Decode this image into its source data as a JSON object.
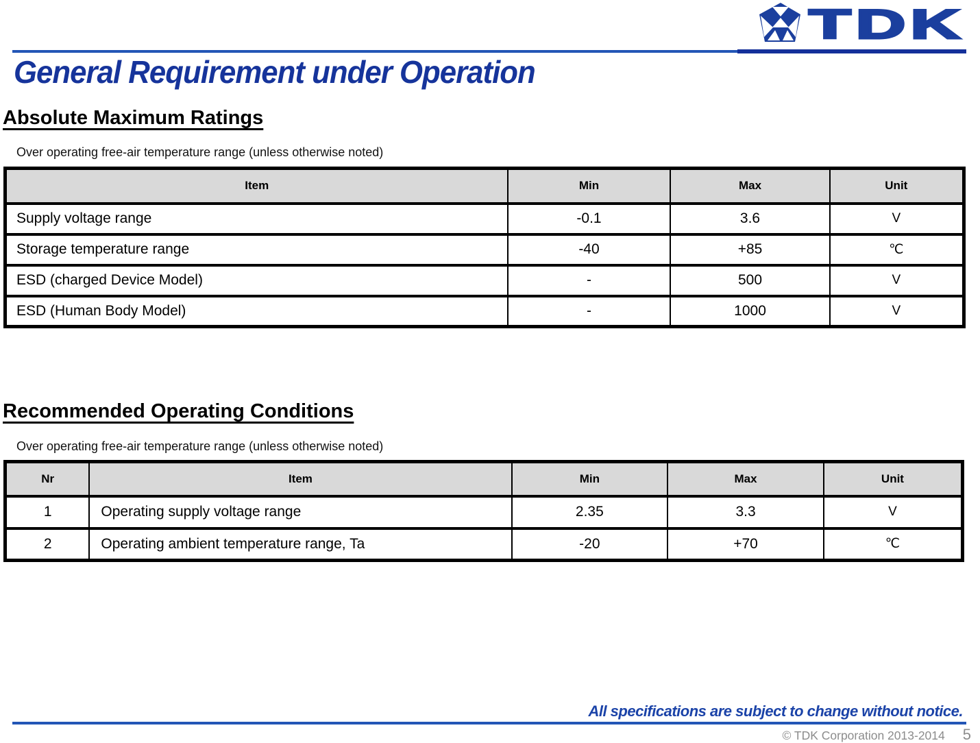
{
  "brand": {
    "logo_text": "TDK",
    "logo_color": "#1b3f9e"
  },
  "page": {
    "title": "General Requirement under Operation",
    "footer_notice": "All specifications are subject to change without notice.",
    "copyright": "© TDK Corporation 2013-2014",
    "page_number": "5"
  },
  "colors": {
    "brand_blue": "#1b3f9e",
    "title_blue": "#16349b",
    "rule_blue": "#2356b6",
    "notice_blue": "#1b43a8",
    "table_header_bg": "#d9d9d9",
    "copyright_gray": "#8c8c8c"
  },
  "sections": [
    {
      "heading": "Absolute Maximum Ratings",
      "note": "Over operating free-air temperature range (unless otherwise noted)",
      "table": {
        "headers": [
          "Item",
          "Min",
          "Max",
          "Unit"
        ],
        "rows": [
          [
            "Supply voltage range",
            "-0.1",
            "3.6",
            "V"
          ],
          [
            "Storage temperature range",
            "-40",
            "+85",
            "℃"
          ],
          [
            "ESD (charged Device Model)",
            "-",
            "500",
            "V"
          ],
          [
            "ESD (Human Body Model)",
            "-",
            "1000",
            "V"
          ]
        ]
      }
    },
    {
      "heading": "Recommended Operating Conditions",
      "note": "Over operating free-air temperature range (unless otherwise noted)",
      "table": {
        "headers": [
          "Nr",
          "Item",
          "Min",
          "Max",
          "Unit"
        ],
        "rows": [
          [
            "1",
            "Operating supply voltage range",
            "2.35",
            "3.3",
            "V"
          ],
          [
            "2",
            "Operating ambient temperature range, Ta",
            "-20",
            "+70",
            "℃"
          ]
        ]
      }
    }
  ]
}
